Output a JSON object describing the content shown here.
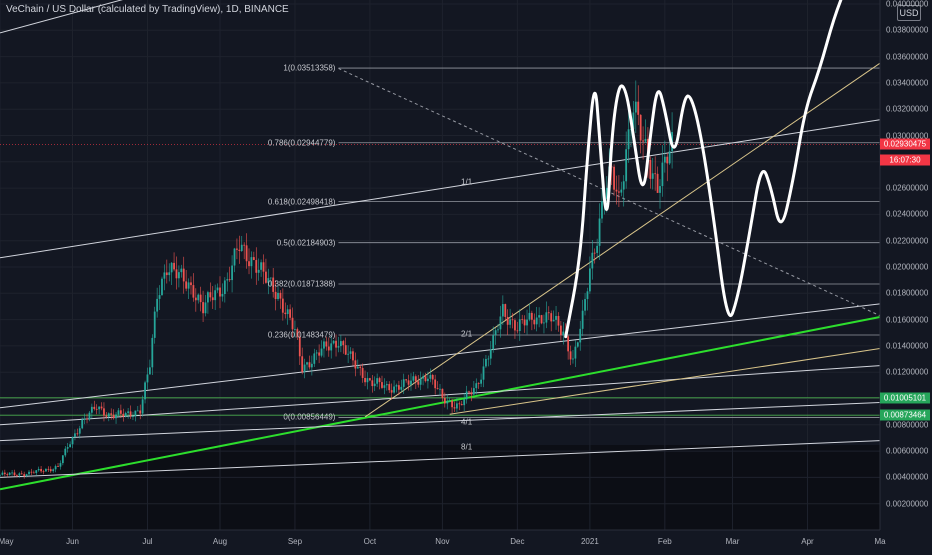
{
  "chart_data": {
    "type": "candlestick",
    "title": "VeChain / US Dollar (calculated by TradingView), 1D, BINANCE",
    "currency": "USD",
    "ylim": [
      0.0,
      0.04
    ],
    "price_ticks": [
      0.04,
      0.038,
      0.036,
      0.034,
      0.032,
      0.03,
      0.028,
      0.026,
      0.024,
      0.022,
      0.02,
      0.018,
      0.016,
      0.014,
      0.012,
      0.01,
      0.008,
      0.006,
      0.004,
      0.002
    ],
    "price_tick_labels": [
      "0.04000000",
      "0.03800000",
      "0.03600000",
      "0.03400000",
      "0.03200000",
      "0.03000000",
      "0.02800000",
      "0.02600000",
      "0.02400000",
      "0.02200000",
      "0.02000000",
      "0.01800000",
      "0.01600000",
      "0.01400000",
      "0.01200000",
      "0.01000000",
      "0.00800000",
      "0.00600000",
      "0.00400000",
      "0.00200000"
    ],
    "date_ticks": [
      {
        "label": "May",
        "day": 0
      },
      {
        "label": "Jun",
        "day": 30
      },
      {
        "label": "Jul",
        "day": 61
      },
      {
        "label": "Aug",
        "day": 91
      },
      {
        "label": "Sep",
        "day": 122
      },
      {
        "label": "Oct",
        "day": 153
      },
      {
        "label": "Nov",
        "day": 183
      },
      {
        "label": "Dec",
        "day": 214
      },
      {
        "label": "2021",
        "day": 244
      },
      {
        "label": "Feb",
        "day": 275
      },
      {
        "label": "Mar",
        "day": 303
      },
      {
        "label": "Apr",
        "day": 334
      },
      {
        "label": "Ma",
        "day": 364
      }
    ],
    "last_price_tag": {
      "price": "0.02930475",
      "countdown": "16:07:30",
      "value": 0.0293
    },
    "support_tags": [
      {
        "label": "0.01005101",
        "value": 0.01005
      },
      {
        "label": "0.00873464",
        "value": 0.00873
      }
    ],
    "fib_levels": [
      {
        "label": "1(0.03513358)",
        "value": 0.03513
      },
      {
        "label": "0.786(0.02944779)",
        "value": 0.02945
      },
      {
        "label": "0.618(0.02498418)",
        "value": 0.02498
      },
      {
        "label": "0.5(0.02184903)",
        "value": 0.02185
      },
      {
        "label": "0.382(0.01871388)",
        "value": 0.01871
      },
      {
        "label": "0.236(0.01483479)",
        "value": 0.01483
      },
      {
        "label": "0(0.00856449)",
        "value": 0.00856
      }
    ],
    "gann_labels": [
      {
        "label": "1/1",
        "day": 193,
        "value": 0.0265
      },
      {
        "label": "2/1",
        "day": 193,
        "value": 0.0149
      },
      {
        "label": "4/1",
        "day": 193,
        "value": 0.0082
      },
      {
        "label": "8/1",
        "day": 193,
        "value": 0.0063
      }
    ],
    "price_path": [
      {
        "day": 0,
        "value": 0.0042
      },
      {
        "day": 12,
        "value": 0.0043
      },
      {
        "day": 24,
        "value": 0.0048
      },
      {
        "day": 28,
        "value": 0.0063
      },
      {
        "day": 34,
        "value": 0.0083
      },
      {
        "day": 40,
        "value": 0.0093
      },
      {
        "day": 45,
        "value": 0.0088
      },
      {
        "day": 52,
        "value": 0.0087
      },
      {
        "day": 58,
        "value": 0.0092
      },
      {
        "day": 62,
        "value": 0.0125
      },
      {
        "day": 65,
        "value": 0.0178
      },
      {
        "day": 69,
        "value": 0.0202
      },
      {
        "day": 74,
        "value": 0.0192
      },
      {
        "day": 80,
        "value": 0.0184
      },
      {
        "day": 84,
        "value": 0.0168
      },
      {
        "day": 88,
        "value": 0.0178
      },
      {
        "day": 94,
        "value": 0.019
      },
      {
        "day": 99,
        "value": 0.0215
      },
      {
        "day": 105,
        "value": 0.0205
      },
      {
        "day": 110,
        "value": 0.019
      },
      {
        "day": 115,
        "value": 0.018
      },
      {
        "day": 122,
        "value": 0.015
      },
      {
        "day": 125,
        "value": 0.0124
      },
      {
        "day": 133,
        "value": 0.0136
      },
      {
        "day": 140,
        "value": 0.0145
      },
      {
        "day": 146,
        "value": 0.0127
      },
      {
        "day": 153,
        "value": 0.0113
      },
      {
        "day": 160,
        "value": 0.0108
      },
      {
        "day": 170,
        "value": 0.0112
      },
      {
        "day": 177,
        "value": 0.0118
      },
      {
        "day": 183,
        "value": 0.01
      },
      {
        "day": 190,
        "value": 0.0094
      },
      {
        "day": 197,
        "value": 0.011
      },
      {
        "day": 204,
        "value": 0.0142
      },
      {
        "day": 208,
        "value": 0.0168
      },
      {
        "day": 214,
        "value": 0.0153
      },
      {
        "day": 221,
        "value": 0.0163
      },
      {
        "day": 228,
        "value": 0.016
      },
      {
        "day": 233,
        "value": 0.0152
      },
      {
        "day": 237,
        "value": 0.0128
      },
      {
        "day": 241,
        "value": 0.016
      },
      {
        "day": 244,
        "value": 0.02
      },
      {
        "day": 247,
        "value": 0.0225
      },
      {
        "day": 250,
        "value": 0.0255
      },
      {
        "day": 253,
        "value": 0.027
      },
      {
        "day": 256,
        "value": 0.0252
      },
      {
        "day": 259,
        "value": 0.029
      },
      {
        "day": 262,
        "value": 0.032
      },
      {
        "day": 265,
        "value": 0.03
      },
      {
        "day": 268,
        "value": 0.0285
      },
      {
        "day": 272,
        "value": 0.0262
      },
      {
        "day": 275,
        "value": 0.0275
      },
      {
        "day": 278,
        "value": 0.0293
      }
    ],
    "projection_path": [
      {
        "day": 234,
        "value": 0.0147
      },
      {
        "day": 240,
        "value": 0.0205
      },
      {
        "day": 243,
        "value": 0.0285
      },
      {
        "day": 246,
        "value": 0.0345
      },
      {
        "day": 248,
        "value": 0.03
      },
      {
        "day": 251,
        "value": 0.0225
      },
      {
        "day": 253,
        "value": 0.03
      },
      {
        "day": 256,
        "value": 0.034
      },
      {
        "day": 259,
        "value": 0.0335
      },
      {
        "day": 262,
        "value": 0.03
      },
      {
        "day": 266,
        "value": 0.025
      },
      {
        "day": 269,
        "value": 0.03
      },
      {
        "day": 272,
        "value": 0.034
      },
      {
        "day": 275,
        "value": 0.032
      },
      {
        "day": 279,
        "value": 0.028
      },
      {
        "day": 283,
        "value": 0.033
      },
      {
        "day": 286,
        "value": 0.033
      },
      {
        "day": 290,
        "value": 0.03
      },
      {
        "day": 295,
        "value": 0.024
      },
      {
        "day": 301,
        "value": 0.0155
      },
      {
        "day": 305,
        "value": 0.0175
      },
      {
        "day": 310,
        "value": 0.0225
      },
      {
        "day": 315,
        "value": 0.028
      },
      {
        "day": 319,
        "value": 0.026
      },
      {
        "day": 323,
        "value": 0.0225
      },
      {
        "day": 328,
        "value": 0.0265
      },
      {
        "day": 333,
        "value": 0.032
      },
      {
        "day": 339,
        "value": 0.035
      },
      {
        "day": 345,
        "value": 0.039
      },
      {
        "day": 351,
        "value": 0.0418
      }
    ],
    "trendlines": [
      {
        "kind": "green-support",
        "from": {
          "day": 0,
          "value": 0.0031
        },
        "to": {
          "day": 364,
          "value": 0.0162
        }
      },
      {
        "kind": "channel",
        "from": {
          "day": 0,
          "value": 0.0207
        },
        "to": {
          "day": 364,
          "value": 0.0312
        }
      },
      {
        "kind": "channel",
        "from": {
          "day": 0,
          "value": 0.0378
        },
        "to": {
          "day": 364,
          "value": 0.056
        }
      },
      {
        "kind": "channel",
        "from": {
          "day": 0,
          "value": 0.0093
        },
        "to": {
          "day": 364,
          "value": 0.0172
        }
      },
      {
        "kind": "channel",
        "from": {
          "day": 0,
          "value": 0.008
        },
        "to": {
          "day": 364,
          "value": 0.0125
        }
      },
      {
        "kind": "channel",
        "from": {
          "day": 0,
          "value": 0.0068
        },
        "to": {
          "day": 364,
          "value": 0.0097
        }
      },
      {
        "kind": "channel",
        "from": {
          "day": 0,
          "value": 0.004
        },
        "to": {
          "day": 364,
          "value": 0.0068
        }
      },
      {
        "kind": "gann",
        "from": {
          "day": 151,
          "value": 0.0086
        },
        "to": {
          "day": 364,
          "value": 0.0355
        }
      },
      {
        "kind": "gann",
        "from": {
          "day": 186,
          "value": 0.0088
        },
        "to": {
          "day": 364,
          "value": 0.0138
        }
      }
    ],
    "dashed_line": {
      "from": {
        "day": 140,
        "value": 0.0351
      },
      "to": {
        "day": 364,
        "value": 0.0163
      }
    }
  }
}
